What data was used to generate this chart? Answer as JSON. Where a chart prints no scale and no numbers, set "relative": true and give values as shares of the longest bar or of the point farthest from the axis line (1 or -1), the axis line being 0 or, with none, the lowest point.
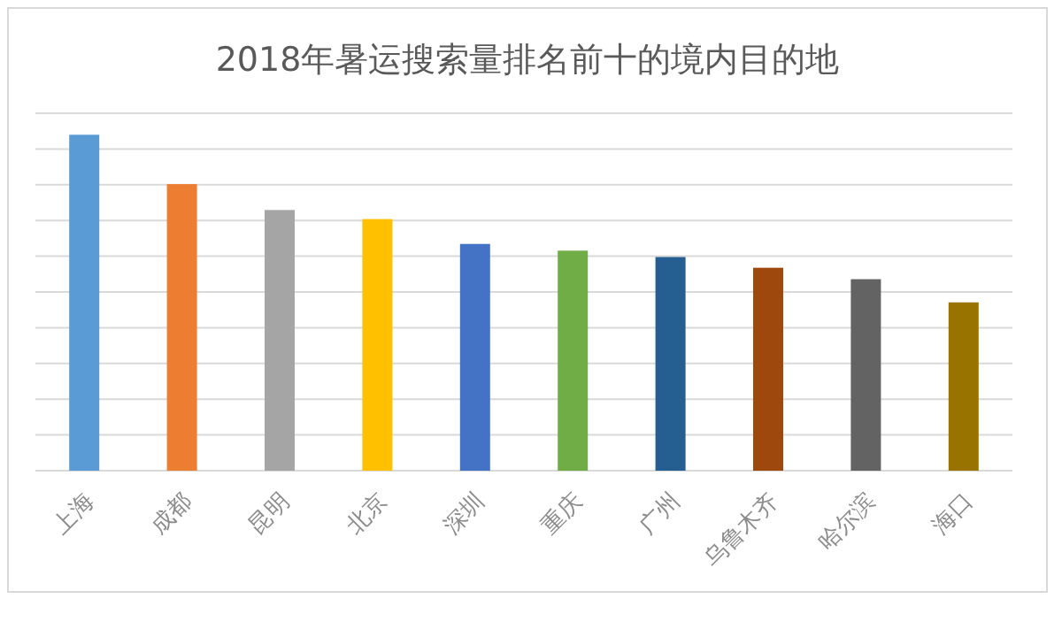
{
  "chart_data": {
    "type": "bar",
    "title": "2018年暑运搜索量排名前十的境内目的地",
    "categories": [
      "上海",
      "成都",
      "昆明",
      "北京",
      "深圳",
      "重庆",
      "广州",
      "乌鲁木齐",
      "哈尔滨",
      "海口"
    ],
    "values": [
      1,
      0.853,
      0.776,
      0.749,
      0.675,
      0.655,
      0.636,
      0.604,
      0.57,
      0.501
    ],
    "colors": [
      "#5b9bd5",
      "#ed7d31",
      "#a5a5a5",
      "#ffc000",
      "#4472c4",
      "#70ad47",
      "#255e91",
      "#9e480e",
      "#636363",
      "#997300"
    ],
    "relative": true,
    "grid": true
  }
}
